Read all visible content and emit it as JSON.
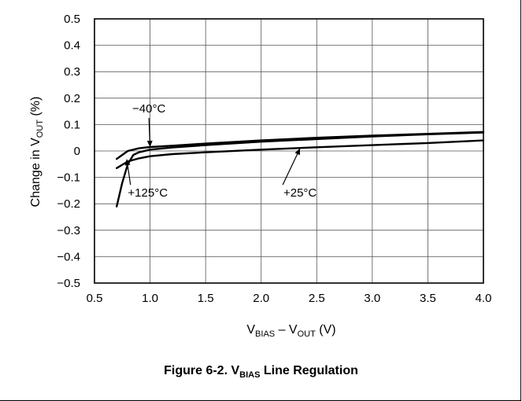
{
  "chart_data": {
    "type": "line",
    "caption": {
      "prefix": "Figure 6-2. V",
      "subscript": "BIAS",
      "suffix": " Line Regulation"
    },
    "xlabel": {
      "main1": "V",
      "sub1": "BIAS",
      "mid": " – V",
      "sub2": "OUT",
      "unit": " (V)"
    },
    "ylabel": {
      "main": "Change in V",
      "sub": "OUT",
      "unit": " (%)"
    },
    "xlim": [
      0.5,
      4.0
    ],
    "ylim": [
      -0.5,
      0.5
    ],
    "x_ticks": [
      0.5,
      1.0,
      1.5,
      2.0,
      2.5,
      3.0,
      3.5,
      4.0
    ],
    "x_tick_labels": [
      "0.5",
      "1.0",
      "1.5",
      "2.0",
      "2.5",
      "3.0",
      "3.5",
      "4.0"
    ],
    "y_ticks": [
      0.5,
      0.4,
      0.3,
      0.2,
      0.1,
      0,
      -0.1,
      -0.2,
      -0.3,
      -0.4,
      -0.5
    ],
    "y_tick_labels": [
      "0.5",
      "0.4",
      "0.3",
      "0.2",
      "0.1",
      "0",
      "−0.1",
      "−0.2",
      "−0.3",
      "−0.4",
      "−0.5"
    ],
    "grid": true,
    "series": [
      {
        "name": "−40°C",
        "x": [
          0.7,
          0.8,
          0.9,
          1.0,
          1.2,
          1.5,
          2.0,
          2.5,
          3.0,
          3.5,
          4.0
        ],
        "y": [
          -0.03,
          0.0,
          0.01,
          0.015,
          0.02,
          0.028,
          0.04,
          0.05,
          0.058,
          0.065,
          0.072
        ]
      },
      {
        "name": "+125°C",
        "x": [
          0.7,
          0.75,
          0.8,
          0.85,
          0.9,
          1.0,
          1.2,
          1.5,
          2.0,
          2.5,
          3.0,
          3.5,
          4.0
        ],
        "y": [
          -0.21,
          -0.12,
          -0.05,
          -0.015,
          -0.005,
          0.005,
          0.013,
          0.022,
          0.035,
          0.045,
          0.055,
          0.063,
          0.07
        ]
      },
      {
        "name": "+25°C",
        "x": [
          0.7,
          0.8,
          0.9,
          1.0,
          1.2,
          1.5,
          2.0,
          2.5,
          3.0,
          3.5,
          4.0
        ],
        "y": [
          -0.065,
          -0.04,
          -0.028,
          -0.02,
          -0.012,
          -0.005,
          0.005,
          0.014,
          0.022,
          0.03,
          0.04
        ]
      }
    ],
    "annotations": [
      {
        "label": "−40°C",
        "point": [
          1.0,
          0.015
        ],
        "text_at": [
          0.99,
          0.14
        ]
      },
      {
        "label": "+125°C",
        "point": [
          0.79,
          -0.03
        ],
        "text_at": [
          0.98,
          -0.14
        ]
      },
      {
        "label": "+25°C",
        "point": [
          2.35,
          0.01
        ],
        "text_at": [
          2.35,
          -0.14
        ]
      }
    ]
  }
}
